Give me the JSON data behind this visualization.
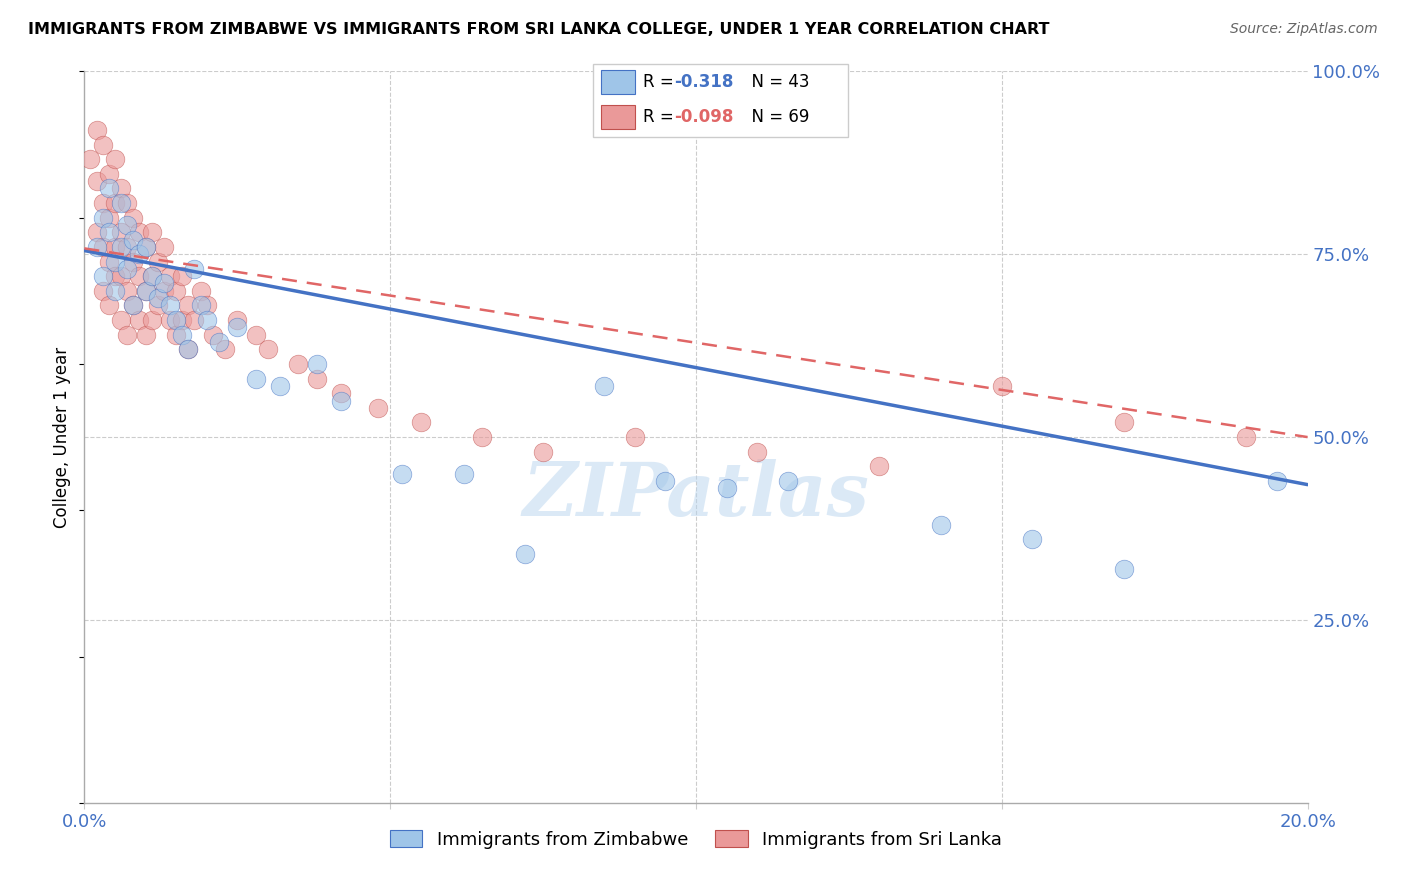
{
  "title": "IMMIGRANTS FROM ZIMBABWE VS IMMIGRANTS FROM SRI LANKA COLLEGE, UNDER 1 YEAR CORRELATION CHART",
  "source": "Source: ZipAtlas.com",
  "ylabel": "College, Under 1 year",
  "legend_label_1": "Immigrants from Zimbabwe",
  "legend_label_2": "Immigrants from Sri Lanka",
  "r1": "-0.318",
  "n1": "43",
  "r2": "-0.098",
  "n2": "69",
  "color1": "#9fc5e8",
  "color2": "#ea9999",
  "trendline1_color": "#4472c4",
  "trendline2_color": "#e06666",
  "xlim": [
    0.0,
    0.2
  ],
  "ylim": [
    0.0,
    1.0
  ],
  "zim_x": [
    0.002,
    0.003,
    0.003,
    0.004,
    0.004,
    0.005,
    0.005,
    0.006,
    0.006,
    0.007,
    0.007,
    0.008,
    0.008,
    0.009,
    0.01,
    0.01,
    0.011,
    0.012,
    0.013,
    0.014,
    0.015,
    0.016,
    0.017,
    0.018,
    0.019,
    0.02,
    0.022,
    0.025,
    0.028,
    0.032,
    0.038,
    0.042,
    0.052,
    0.062,
    0.072,
    0.085,
    0.095,
    0.105,
    0.115,
    0.14,
    0.155,
    0.17,
    0.195
  ],
  "zim_y": [
    0.76,
    0.8,
    0.72,
    0.78,
    0.84,
    0.74,
    0.7,
    0.82,
    0.76,
    0.79,
    0.73,
    0.77,
    0.68,
    0.75,
    0.76,
    0.7,
    0.72,
    0.69,
    0.71,
    0.68,
    0.66,
    0.64,
    0.62,
    0.73,
    0.68,
    0.66,
    0.63,
    0.65,
    0.58,
    0.57,
    0.6,
    0.55,
    0.45,
    0.45,
    0.34,
    0.57,
    0.44,
    0.43,
    0.44,
    0.38,
    0.36,
    0.32,
    0.44
  ],
  "sri_x": [
    0.001,
    0.002,
    0.002,
    0.002,
    0.003,
    0.003,
    0.003,
    0.003,
    0.004,
    0.004,
    0.004,
    0.004,
    0.005,
    0.005,
    0.005,
    0.005,
    0.006,
    0.006,
    0.006,
    0.006,
    0.007,
    0.007,
    0.007,
    0.007,
    0.008,
    0.008,
    0.008,
    0.009,
    0.009,
    0.009,
    0.01,
    0.01,
    0.01,
    0.011,
    0.011,
    0.011,
    0.012,
    0.012,
    0.013,
    0.013,
    0.014,
    0.014,
    0.015,
    0.015,
    0.016,
    0.016,
    0.017,
    0.017,
    0.018,
    0.019,
    0.02,
    0.021,
    0.023,
    0.025,
    0.028,
    0.03,
    0.035,
    0.038,
    0.042,
    0.048,
    0.055,
    0.065,
    0.075,
    0.09,
    0.11,
    0.13,
    0.15,
    0.17,
    0.19
  ],
  "sri_y": [
    0.88,
    0.92,
    0.85,
    0.78,
    0.9,
    0.82,
    0.76,
    0.7,
    0.86,
    0.8,
    0.74,
    0.68,
    0.88,
    0.82,
    0.76,
    0.72,
    0.84,
    0.78,
    0.72,
    0.66,
    0.82,
    0.76,
    0.7,
    0.64,
    0.8,
    0.74,
    0.68,
    0.78,
    0.72,
    0.66,
    0.76,
    0.7,
    0.64,
    0.78,
    0.72,
    0.66,
    0.74,
    0.68,
    0.76,
    0.7,
    0.72,
    0.66,
    0.7,
    0.64,
    0.72,
    0.66,
    0.68,
    0.62,
    0.66,
    0.7,
    0.68,
    0.64,
    0.62,
    0.66,
    0.64,
    0.62,
    0.6,
    0.58,
    0.56,
    0.54,
    0.52,
    0.5,
    0.48,
    0.5,
    0.48,
    0.46,
    0.57,
    0.52,
    0.5
  ],
  "trendline1_x": [
    0.0,
    0.2
  ],
  "trendline1_y": [
    0.755,
    0.435
  ],
  "trendline2_x": [
    0.0,
    0.2
  ],
  "trendline2_y": [
    0.758,
    0.5
  ]
}
